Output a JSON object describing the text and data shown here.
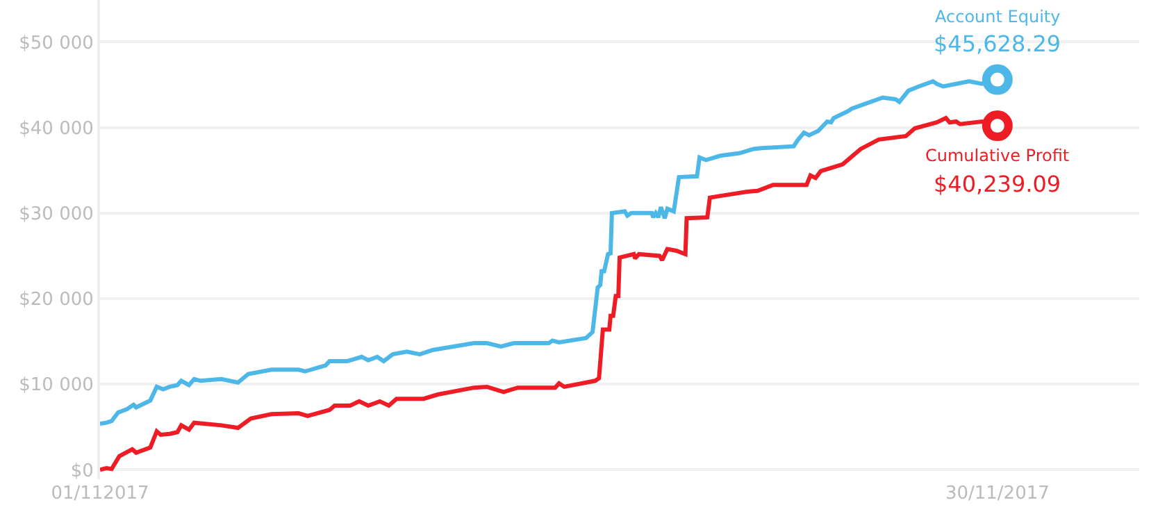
{
  "chart_data": {
    "type": "line",
    "x": [
      "2017-11-01T00:00",
      "2017-11-01T05:00",
      "2017-11-01T09:00",
      "2017-11-01T14:00",
      "2017-11-01T21:00",
      "2017-11-02T02:00",
      "2017-11-02T04:00",
      "2017-11-02T15:00",
      "2017-11-02T20:00",
      "2017-11-03T01:00",
      "2017-11-03T06:00",
      "2017-11-03T12:00",
      "2017-11-03T15:00",
      "2017-11-03T21:00",
      "2017-11-04T01:00",
      "2017-11-04T06:00",
      "2017-11-04T22:00",
      "2017-11-05T11:00",
      "2017-11-05T19:00",
      "2017-11-06T13:00",
      "2017-11-07T10:00",
      "2017-11-07T15:00",
      "2017-11-08T07:00",
      "2017-11-08T10:00",
      "2017-11-09T00:00",
      "2017-11-09T11:00",
      "2017-11-09T16:00",
      "2017-11-09T23:00",
      "2017-11-10T04:00",
      "2017-11-10T11:00",
      "2017-11-10T22:00",
      "2017-11-11T08:00",
      "2017-11-11T18:00",
      "2017-11-13T02:00",
      "2017-11-13T12:00",
      "2017-11-13T23:00",
      "2017-11-14T09:00",
      "2017-11-15T12:00",
      "2017-11-15T15:00",
      "2017-11-15T20:00",
      "2017-11-16T17:00",
      "2017-11-16T22:00",
      "2017-11-17T02:00",
      "2017-11-17T04:00",
      "2017-11-17T05:00",
      "2017-11-17T07:00",
      "2017-11-17T10:00",
      "2017-11-17T12:00",
      "2017-11-17T13:00",
      "2017-11-17T23:00",
      "2017-11-18T01:00",
      "2017-11-18T04:00",
      "2017-11-18T20:00",
      "2017-11-18T21:00",
      "2017-11-18T23:00",
      "2017-11-19T01:00",
      "2017-11-19T03:00",
      "2017-11-19T06:00",
      "2017-11-19T08:00",
      "2017-11-19T13:00",
      "2017-11-19T17:00",
      "2017-11-20T07:00",
      "2017-11-20T09:00",
      "2017-11-20T14:00",
      "2017-11-21T01:00",
      "2017-11-21T16:00",
      "2017-11-22T03:00",
      "2017-11-22T09:00",
      "2017-11-23T10:00",
      "2017-11-23T13:00",
      "2017-11-23T18:00",
      "2017-11-23T22:00",
      "2017-11-24T05:00",
      "2017-11-24T12:00",
      "2017-11-24T15:00",
      "2017-11-24T17:00",
      "2017-11-25T04:00",
      "2017-11-25T07:00",
      "2017-11-25T18:00",
      "2017-11-26T07:00",
      "2017-11-26T17:00",
      "2017-11-26T20:00",
      "2017-11-27T03:00",
      "2017-11-27T11:00",
      "2017-11-27T22:00",
      "2017-11-28T01:00",
      "2017-11-28T06:00",
      "2017-11-28T16:00",
      "2017-11-29T02:00",
      "2017-11-29T12:00",
      "2017-11-30T00:00"
    ],
    "series": [
      {
        "name": "Account Equity",
        "color": "#4db8e8",
        "values": [
          5400,
          5500,
          5700,
          6700,
          7100,
          7600,
          7300,
          8100,
          9700,
          9400,
          9700,
          9900,
          10400,
          9900,
          10600,
          10400,
          10600,
          10200,
          11200,
          11700,
          11700,
          11500,
          12200,
          12700,
          12700,
          13200,
          12800,
          13200,
          12700,
          13500,
          13800,
          13500,
          14000,
          14800,
          14800,
          14400,
          14800,
          14800,
          15100,
          14900,
          15400,
          16100,
          21300,
          21600,
          23200,
          23200,
          25200,
          25300,
          30000,
          30200,
          29700,
          30000,
          30000,
          29500,
          30000,
          29500,
          30700,
          29400,
          30500,
          30200,
          34200,
          34300,
          36500,
          36200,
          36700,
          37000,
          37500,
          37600,
          37800,
          38500,
          39400,
          39100,
          39600,
          40700,
          40600,
          41100,
          41900,
          42200,
          42800,
          43500,
          43300,
          43000,
          44300,
          44800,
          45400,
          45100,
          44800,
          45100,
          45400,
          45100,
          45600
        ]
      },
      {
        "name": "Cumulative Profit",
        "color": "#ee1c25",
        "x": [
          "2017-11-01T00:00",
          "2017-11-01T05:00",
          "2017-11-01T09:00",
          "2017-11-01T15:00",
          "2017-11-02T01:00",
          "2017-11-02T04:00",
          "2017-11-02T15:00",
          "2017-11-02T20:00",
          "2017-11-02T23:00",
          "2017-11-03T06:00",
          "2017-11-03T12:00",
          "2017-11-03T15:00",
          "2017-11-03T21:00",
          "2017-11-04T01:00",
          "2017-11-04T22:00",
          "2017-11-05T11:00",
          "2017-11-05T21:00",
          "2017-11-06T13:00",
          "2017-11-07T10:00",
          "2017-11-07T17:00",
          "2017-11-08T10:00",
          "2017-11-08T14:00",
          "2017-11-09T02:00",
          "2017-11-09T09:00",
          "2017-11-09T16:00",
          "2017-11-10T01:00",
          "2017-11-10T08:00",
          "2017-11-10T14:00",
          "2017-11-11T11:00",
          "2017-11-11T22:00",
          "2017-11-13T02:00",
          "2017-11-13T12:00",
          "2017-11-14T01:00",
          "2017-11-14T12:00",
          "2017-11-15T17:00",
          "2017-11-15T20:00",
          "2017-11-16T00:00",
          "2017-11-17T00:00",
          "2017-11-17T03:00",
          "2017-11-17T06:00",
          "2017-11-17T11:00",
          "2017-11-17T12:00",
          "2017-11-17T14:00",
          "2017-11-17T16:00",
          "2017-11-17T18:00",
          "2017-11-17T19:00",
          "2017-11-18T06:00",
          "2017-11-18T07:00",
          "2017-11-18T10:00",
          "2017-11-19T02:00",
          "2017-11-19T04:00",
          "2017-11-19T08:00",
          "2017-11-19T15:00",
          "2017-11-19T22:00",
          "2017-11-19T23:00",
          "2017-11-20T15:00",
          "2017-11-20T17:00",
          "2017-11-21T01:00",
          "2017-11-21T22:00",
          "2017-11-22T06:00",
          "2017-11-22T18:00",
          "2017-11-23T20:00",
          "2017-11-23T23:00",
          "2017-11-24T03:00",
          "2017-11-24T07:00",
          "2017-11-25T00:00",
          "2017-11-25T14:00",
          "2017-11-26T04:00",
          "2017-11-27T01:00",
          "2017-11-27T08:00",
          "2017-11-28T01:00",
          "2017-11-28T08:00",
          "2017-11-28T11:00",
          "2017-11-28T16:00",
          "2017-11-28T19:00",
          "2017-11-29T12:00",
          "2017-11-30T00:00"
        ],
        "values": [
          0,
          200,
          100,
          1600,
          2400,
          2000,
          2600,
          4500,
          4100,
          4200,
          4400,
          5200,
          4700,
          5500,
          5200,
          4900,
          6000,
          6500,
          6600,
          6300,
          7000,
          7500,
          7500,
          8000,
          7500,
          8000,
          7500,
          8300,
          8300,
          8800,
          9600,
          9700,
          9100,
          9600,
          9600,
          10100,
          9700,
          10400,
          10700,
          16400,
          16400,
          18000,
          18000,
          20300,
          20300,
          24800,
          25200,
          24700,
          25200,
          25000,
          24500,
          25800,
          25600,
          25200,
          29400,
          29500,
          31800,
          32000,
          32500,
          32600,
          33300,
          33300,
          34400,
          34100,
          34900,
          35700,
          37500,
          38600,
          39000,
          39900,
          40600,
          41100,
          40600,
          40700,
          40400,
          40700,
          40200
        ]
      }
    ],
    "annotations": [
      {
        "text": "$45,628.29",
        "x": "2017-11-30T00:00",
        "y": 45600
      },
      {
        "text": "$40,239.09",
        "x": "2017-11-30T00:00",
        "y": 40200
      }
    ],
    "xlim": [
      "2017-11-01T00:00",
      "2017-12-04T14:00"
    ],
    "xticks": [
      {
        "value": "2017-11-01",
        "label": "01/112017"
      },
      {
        "value": "2017-11-30",
        "label": "30/11/2017"
      }
    ],
    "ylim": [
      -1100,
      54900
    ],
    "yticks": [
      {
        "value": 0,
        "label": "$0"
      },
      {
        "value": 10000,
        "label": "$10 000"
      },
      {
        "value": 20000,
        "label": "$20 000"
      },
      {
        "value": 30000,
        "label": "$30 000"
      },
      {
        "value": 40000,
        "label": "$40 000"
      },
      {
        "value": 50000,
        "label": "$50 000"
      }
    ],
    "grid": "y",
    "legend": false,
    "line_style": "solid"
  }
}
